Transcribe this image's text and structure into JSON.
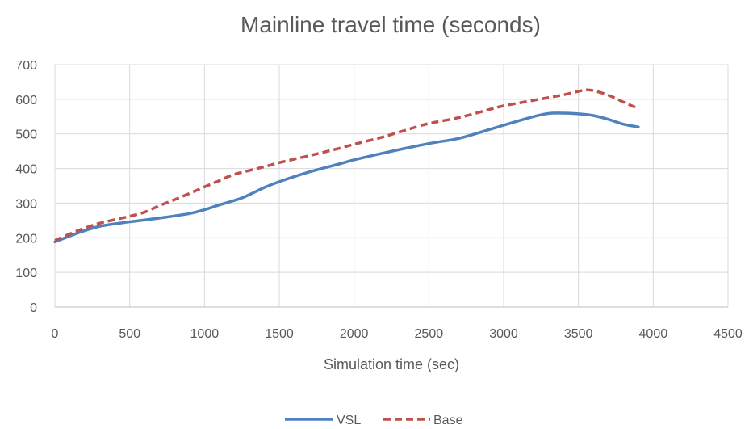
{
  "chart_data": {
    "type": "line",
    "title": "Mainline travel time (seconds)",
    "xlabel": "Simulation time (sec)",
    "ylabel": "",
    "xlim": [
      0,
      4500
    ],
    "ylim": [
      0,
      700
    ],
    "x_ticks": [
      0,
      500,
      1000,
      1500,
      2000,
      2500,
      3000,
      3500,
      4000,
      4500
    ],
    "y_ticks": [
      0,
      100,
      200,
      300,
      400,
      500,
      600,
      700
    ],
    "grid": true,
    "legend_position": "bottom",
    "series": [
      {
        "name": "VSL",
        "color": "#4f81bd",
        "style": "solid",
        "x": [
          0,
          150,
          300,
          500,
          700,
          900,
          1000,
          1100,
          1250,
          1400,
          1500,
          1700,
          1900,
          2000,
          2200,
          2500,
          2700,
          2900,
          3000,
          3200,
          3300,
          3400,
          3500,
          3600,
          3700,
          3800,
          3900
        ],
        "y": [
          188,
          213,
          233,
          246,
          257,
          270,
          281,
          295,
          315,
          345,
          362,
          390,
          413,
          425,
          445,
          472,
          487,
          512,
          525,
          550,
          559,
          560,
          558,
          553,
          542,
          528,
          520
        ]
      },
      {
        "name": "Base",
        "color": "#c0504d",
        "style": "dashed",
        "x": [
          0,
          150,
          300,
          500,
          600,
          700,
          800,
          900,
          1000,
          1100,
          1200,
          1400,
          1500,
          1700,
          1900,
          2000,
          2200,
          2400,
          2500,
          2700,
          2900,
          3000,
          3200,
          3400,
          3500,
          3550,
          3600,
          3700,
          3800,
          3900
        ],
        "y": [
          192,
          220,
          242,
          262,
          274,
          293,
          310,
          328,
          347,
          365,
          383,
          405,
          417,
          437,
          458,
          470,
          492,
          518,
          530,
          547,
          570,
          581,
          597,
          613,
          623,
          627,
          625,
          612,
          592,
          573
        ]
      }
    ]
  }
}
